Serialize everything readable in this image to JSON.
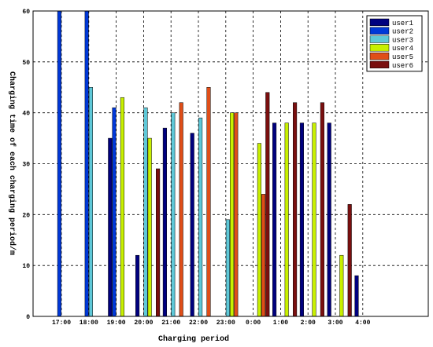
{
  "chart_data": {
    "type": "bar",
    "title": "",
    "xlabel": "Charging period",
    "ylabel": "Charging time of each charging period/m",
    "categories": [
      "17:00",
      "18:00",
      "19:00",
      "20:00",
      "21:00",
      "22:00",
      "23:00",
      "0:00",
      "1:00",
      "2:00",
      "3:00",
      "4:00"
    ],
    "ylim": [
      0,
      60
    ],
    "yticks": [
      "0",
      "10",
      "20",
      "30",
      "40",
      "50",
      "60"
    ],
    "grid": true,
    "legend_position": "top-right",
    "series": [
      {
        "name": "user1",
        "color": "#00007f",
        "values": [
          0,
          0,
          35,
          12,
          37,
          36,
          0,
          0,
          38,
          38,
          38,
          8
        ]
      },
      {
        "name": "user2",
        "color": "#0038d8",
        "values": [
          60,
          60,
          41,
          0,
          0,
          0,
          0,
          0,
          0,
          0,
          0,
          0
        ]
      },
      {
        "name": "user3",
        "color": "#5ec8d8",
        "values": [
          0,
          45,
          0,
          41,
          40,
          39,
          19,
          0,
          0,
          0,
          0,
          0
        ]
      },
      {
        "name": "user4",
        "color": "#c8f000",
        "values": [
          0,
          0,
          43,
          35,
          0,
          0,
          40,
          34,
          38,
          38,
          12,
          0
        ]
      },
      {
        "name": "user5",
        "color": "#e04e18",
        "values": [
          0,
          0,
          0,
          0,
          42,
          45,
          40,
          24,
          0,
          0,
          0,
          0
        ]
      },
      {
        "name": "user6",
        "color": "#7a0f0f",
        "values": [
          0,
          0,
          0,
          29,
          0,
          0,
          0,
          44,
          42,
          42,
          22,
          0
        ]
      }
    ]
  }
}
